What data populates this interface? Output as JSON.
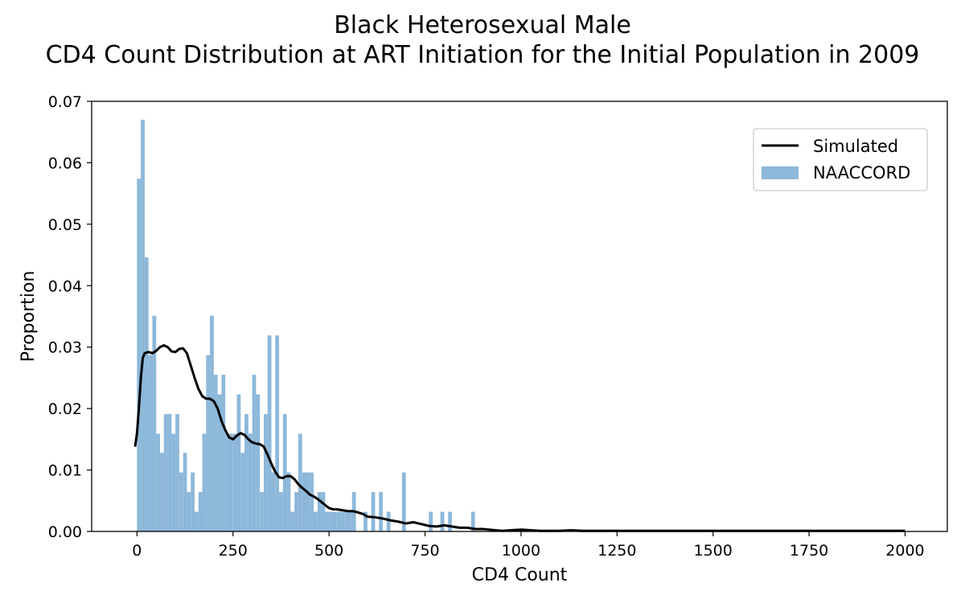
{
  "colors": {
    "simulated_line": "#000000",
    "naaccord_bars": "#8db8da",
    "axes": "#000000"
  },
  "chart_data": {
    "type": "bar",
    "title_lines": [
      "Black Heterosexual Male",
      "CD4 Count Distribution at ART Initiation for the Initial Population in 2009"
    ],
    "xlabel": "CD4 Count",
    "ylabel": "Proportion",
    "xlim": [
      -118,
      2110
    ],
    "ylim": [
      0,
      0.07
    ],
    "xticks": [
      0,
      250,
      500,
      750,
      1000,
      1250,
      1500,
      1750,
      2000
    ],
    "xtick_labels": [
      "0",
      "250",
      "500",
      "750",
      "1000",
      "1250",
      "1500",
      "1750",
      "2000"
    ],
    "yticks": [
      0.0,
      0.01,
      0.02,
      0.03,
      0.04,
      0.05,
      0.06,
      0.07
    ],
    "ytick_labels": [
      "0.00",
      "0.01",
      "0.02",
      "0.03",
      "0.04",
      "0.05",
      "0.06",
      "0.07"
    ],
    "grid": false,
    "legend": {
      "placement": "top-right",
      "entries": [
        "Simulated",
        "NAACCORD"
      ]
    },
    "series": [
      {
        "name": "NAACCORD",
        "kind": "histogram",
        "bin_width": 10,
        "bins": [
          [
            0,
            0.0574
          ],
          [
            10,
            0.067
          ],
          [
            20,
            0.0446
          ],
          [
            30,
            0.0287
          ],
          [
            40,
            0.0351
          ],
          [
            50,
            0.0159
          ],
          [
            60,
            0.0128
          ],
          [
            70,
            0.0191
          ],
          [
            80,
            0.0191
          ],
          [
            90,
            0.0159
          ],
          [
            100,
            0.0191
          ],
          [
            110,
            0.0096
          ],
          [
            120,
            0.0128
          ],
          [
            130,
            0.0064
          ],
          [
            140,
            0.0096
          ],
          [
            150,
            0.0032
          ],
          [
            160,
            0.0064
          ],
          [
            170,
            0.0159
          ],
          [
            180,
            0.0287
          ],
          [
            190,
            0.0351
          ],
          [
            200,
            0.0255
          ],
          [
            210,
            0.0223
          ],
          [
            220,
            0.0255
          ],
          [
            230,
            0.0159
          ],
          [
            240,
            0.0159
          ],
          [
            250,
            0.0159
          ],
          [
            260,
            0.0223
          ],
          [
            270,
            0.0128
          ],
          [
            280,
            0.0191
          ],
          [
            290,
            0.0159
          ],
          [
            300,
            0.0255
          ],
          [
            310,
            0.0223
          ],
          [
            320,
            0.0064
          ],
          [
            330,
            0.0191
          ],
          [
            340,
            0.0319
          ],
          [
            350,
            0.0096
          ],
          [
            360,
            0.0319
          ],
          [
            370,
            0.0064
          ],
          [
            380,
            0.0191
          ],
          [
            390,
            0.0096
          ],
          [
            400,
            0.0032
          ],
          [
            410,
            0.0064
          ],
          [
            420,
            0.0159
          ],
          [
            430,
            0.0096
          ],
          [
            440,
            0.0096
          ],
          [
            450,
            0.0096
          ],
          [
            460,
            0.0032
          ],
          [
            470,
            0.0064
          ],
          [
            480,
            0.0064
          ],
          [
            490,
            0.0032
          ],
          [
            500,
            0.0032
          ],
          [
            510,
            0.0032
          ],
          [
            520,
            0.0032
          ],
          [
            530,
            0.0032
          ],
          [
            540,
            0.0032
          ],
          [
            550,
            0.0032
          ],
          [
            560,
            0.0064
          ],
          [
            590,
            0.0032
          ],
          [
            610,
            0.0064
          ],
          [
            630,
            0.0064
          ],
          [
            650,
            0.0032
          ],
          [
            690,
            0.0096
          ],
          [
            760,
            0.0032
          ],
          [
            790,
            0.0032
          ],
          [
            810,
            0.0032
          ],
          [
            870,
            0.0032
          ]
        ]
      },
      {
        "name": "Simulated",
        "kind": "line",
        "x": [
          -5,
          0,
          5,
          10,
          15,
          20,
          30,
          40,
          50,
          60,
          70,
          80,
          90,
          100,
          110,
          120,
          130,
          140,
          150,
          160,
          170,
          180,
          190,
          200,
          210,
          220,
          230,
          240,
          250,
          260,
          270,
          280,
          290,
          300,
          310,
          320,
          330,
          340,
          350,
          360,
          370,
          380,
          390,
          400,
          410,
          420,
          430,
          440,
          450,
          460,
          470,
          480,
          490,
          500,
          510,
          520,
          530,
          540,
          550,
          560,
          570,
          580,
          590,
          600,
          620,
          640,
          660,
          680,
          700,
          720,
          740,
          760,
          780,
          800,
          820,
          840,
          860,
          880,
          900,
          950,
          1000,
          1050,
          1100,
          1130,
          1160,
          1200,
          1300,
          1500,
          1750,
          2000
        ],
        "y": [
          0.0138,
          0.016,
          0.02,
          0.025,
          0.0282,
          0.029,
          0.0292,
          0.029,
          0.0294,
          0.03,
          0.0303,
          0.03,
          0.0293,
          0.0292,
          0.0297,
          0.0298,
          0.029,
          0.027,
          0.025,
          0.0232,
          0.022,
          0.0216,
          0.0216,
          0.0212,
          0.02,
          0.018,
          0.0165,
          0.0153,
          0.015,
          0.0156,
          0.016,
          0.0157,
          0.015,
          0.0145,
          0.0143,
          0.0142,
          0.0138,
          0.0125,
          0.011,
          0.0097,
          0.0088,
          0.0087,
          0.009,
          0.009,
          0.0085,
          0.0077,
          0.0071,
          0.0066,
          0.006,
          0.0057,
          0.0053,
          0.0048,
          0.0043,
          0.0038,
          0.0036,
          0.0036,
          0.0035,
          0.0034,
          0.0033,
          0.0033,
          0.0032,
          0.003,
          0.0028,
          0.0024,
          0.0023,
          0.0021,
          0.0018,
          0.0016,
          0.0013,
          0.0015,
          0.0012,
          0.0009,
          0.0008,
          0.001,
          0.0008,
          0.0006,
          0.0006,
          0.0004,
          0.0004,
          0.0001,
          0.0003,
          0.0001,
          0.0001,
          0.0002,
          0.0001,
          0.0001,
          0.0001,
          0.0001,
          0.0001,
          0.0001
        ]
      }
    ]
  }
}
